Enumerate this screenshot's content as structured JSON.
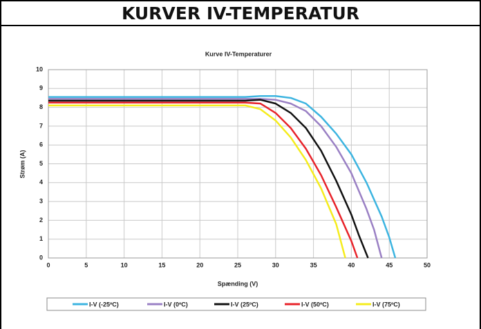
{
  "header": {
    "title": "KURVER IV-TEMPERATUR"
  },
  "chart_data": {
    "type": "line",
    "title": "Kurve IV-Temperaturer",
    "x_label": "Spænding (V)",
    "y_label": "Strøm (A)",
    "xlim": [
      0,
      50
    ],
    "xticks": [
      0,
      5,
      10,
      15,
      20,
      25,
      30,
      35,
      40,
      45,
      50
    ],
    "ylim": [
      0,
      10
    ],
    "yticks": [
      0,
      1,
      2,
      3,
      4,
      5,
      6,
      7,
      8,
      9,
      10
    ],
    "grid": true,
    "legend": "bottom",
    "series": [
      {
        "name": "I-V (-25ºC)",
        "color": "#3cb4e0",
        "x": [
          0,
          26,
          28,
          30,
          32,
          34,
          36,
          38,
          40,
          42,
          44,
          45,
          45.8
        ],
        "values": [
          8.55,
          8.55,
          8.6,
          8.6,
          8.5,
          8.2,
          7.5,
          6.6,
          5.5,
          4.0,
          2.2,
          1.1,
          0
        ]
      },
      {
        "name": "I-V (0ºC)",
        "color": "#9a80c4",
        "x": [
          0,
          26,
          28,
          30,
          32,
          34,
          36,
          38,
          40,
          42,
          43,
          44
        ],
        "values": [
          8.45,
          8.45,
          8.45,
          8.4,
          8.2,
          7.8,
          7.0,
          5.9,
          4.5,
          2.6,
          1.5,
          0
        ]
      },
      {
        "name": "I-V (25ºC)",
        "color": "#111111",
        "x": [
          0,
          26,
          28,
          30,
          32,
          34,
          36,
          38,
          40,
          41,
          42.2
        ],
        "values": [
          8.35,
          8.35,
          8.4,
          8.2,
          7.7,
          6.9,
          5.7,
          4.1,
          2.3,
          1.2,
          0
        ]
      },
      {
        "name": "I-V (50ºC)",
        "color": "#e8232a",
        "x": [
          0,
          26,
          28,
          30,
          32,
          34,
          36,
          38,
          40,
          40.8
        ],
        "values": [
          8.25,
          8.25,
          8.2,
          7.7,
          6.9,
          5.8,
          4.4,
          2.7,
          0.9,
          0
        ]
      },
      {
        "name": "I-V (75ºC)",
        "color": "#f5ec1c",
        "x": [
          0,
          26,
          28,
          30,
          32,
          34,
          36,
          38,
          39.2
        ],
        "values": [
          8.1,
          8.1,
          7.9,
          7.3,
          6.4,
          5.2,
          3.7,
          1.8,
          0
        ]
      }
    ]
  }
}
